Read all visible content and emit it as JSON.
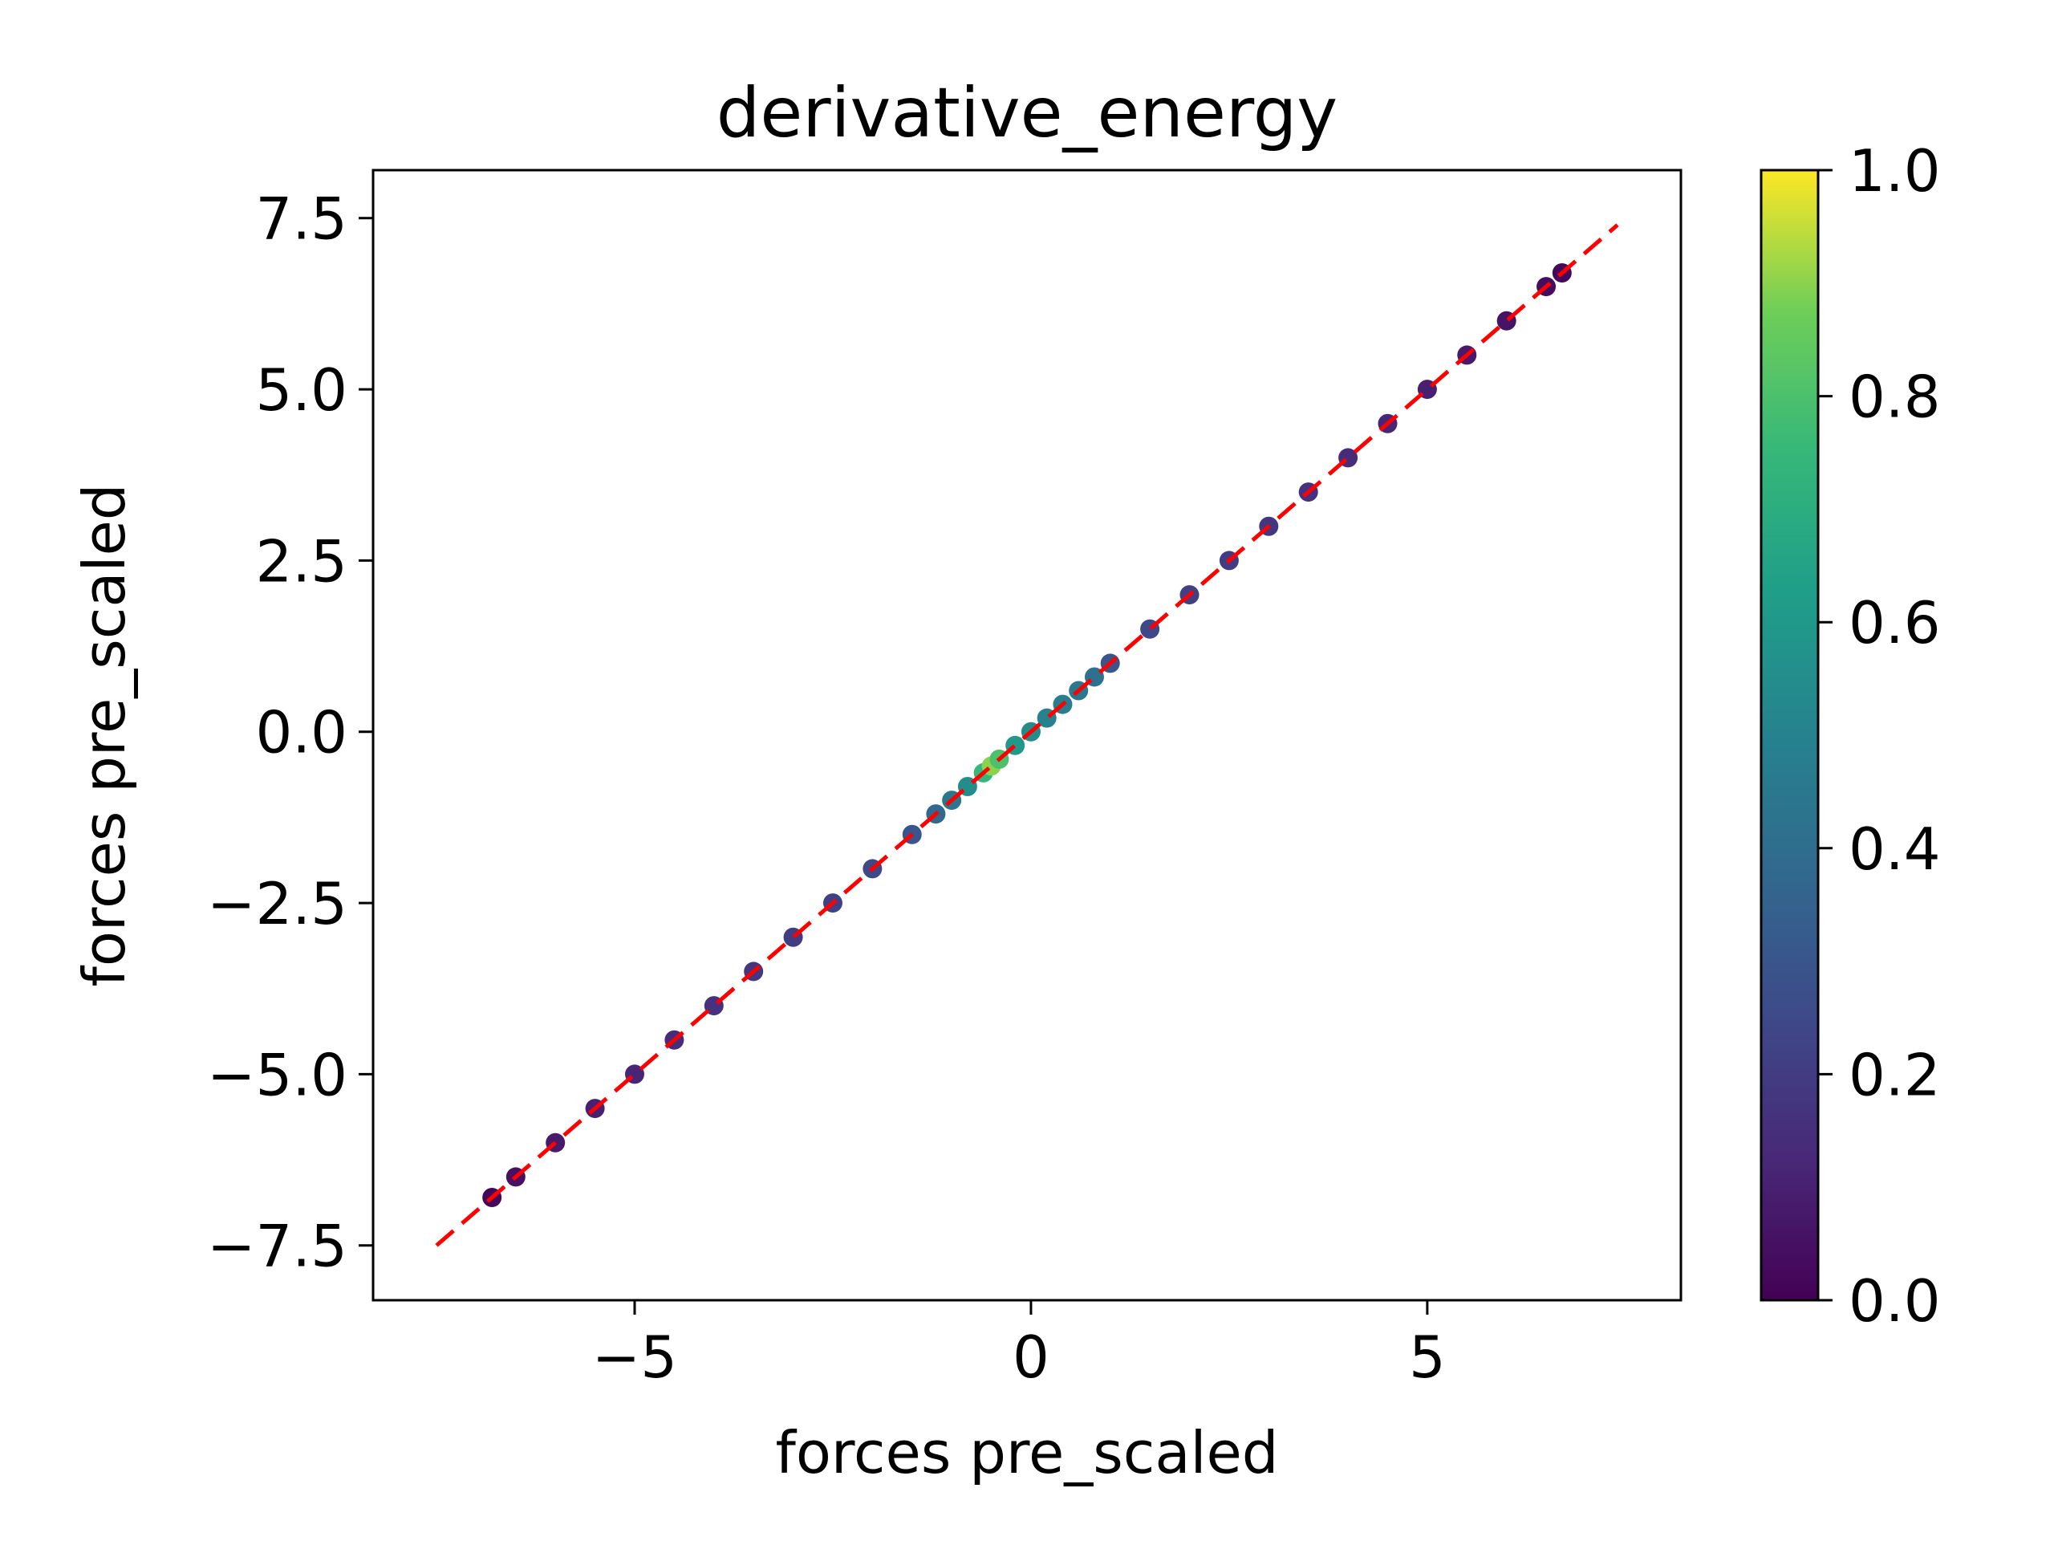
{
  "chart_data": {
    "type": "scatter",
    "title": "derivative_energy",
    "xlabel": "forces pre_scaled",
    "ylabel": "forces pre_scaled",
    "xlim": [
      -8.3,
      8.2
    ],
    "ylim": [
      -8.3,
      8.2
    ],
    "xticks": [
      {
        "value": -5,
        "label": "−5"
      },
      {
        "value": 0,
        "label": "0"
      },
      {
        "value": 5,
        "label": "5"
      }
    ],
    "yticks": [
      {
        "value": -7.5,
        "label": "−7.5"
      },
      {
        "value": -5.0,
        "label": "−5.0"
      },
      {
        "value": -2.5,
        "label": "−2.5"
      },
      {
        "value": 0.0,
        "label": "0.0"
      },
      {
        "value": 2.5,
        "label": "2.5"
      },
      {
        "value": 5.0,
        "label": "5.0"
      },
      {
        "value": 7.5,
        "label": "7.5"
      }
    ],
    "series": [
      {
        "x": [
          -6.8,
          -6.5,
          -6.0,
          -5.5,
          -5.0,
          -4.5,
          -4.0,
          -3.5,
          -3.0,
          -2.5,
          -2.0,
          -1.5,
          -1.2,
          -1.0,
          -0.8,
          -0.6,
          -0.5,
          -0.4,
          -0.2,
          0.0,
          0.2,
          0.4,
          0.6,
          0.8,
          1.0,
          1.5,
          2.0,
          2.5,
          3.0,
          3.5,
          4.0,
          4.5,
          5.0,
          5.5,
          6.0,
          6.5,
          6.7
        ],
        "y": [
          -6.8,
          -6.5,
          -6.0,
          -5.5,
          -5.0,
          -4.5,
          -4.0,
          -3.5,
          -3.0,
          -2.5,
          -2.0,
          -1.5,
          -1.2,
          -1.0,
          -0.8,
          -0.6,
          -0.5,
          -0.4,
          -0.2,
          0.0,
          0.2,
          0.4,
          0.6,
          0.8,
          1.0,
          1.5,
          2.0,
          2.5,
          3.0,
          3.5,
          4.0,
          4.5,
          5.0,
          5.5,
          6.0,
          6.5,
          6.7
        ],
        "density": [
          0.02,
          0.05,
          0.08,
          0.1,
          0.12,
          0.14,
          0.16,
          0.18,
          0.2,
          0.22,
          0.25,
          0.3,
          0.38,
          0.45,
          0.55,
          0.75,
          0.9,
          0.8,
          0.6,
          0.55,
          0.5,
          0.48,
          0.45,
          0.42,
          0.3,
          0.25,
          0.22,
          0.2,
          0.18,
          0.16,
          0.14,
          0.12,
          0.1,
          0.08,
          0.06,
          0.04,
          0.02
        ]
      }
    ],
    "reference_line": {
      "x": [
        -7.5,
        7.4
      ],
      "y": [
        -7.5,
        7.4
      ],
      "color": "#ff0000",
      "style": "dashed"
    },
    "colorbar": {
      "colormap": "viridis",
      "range": [
        0.0,
        1.0
      ],
      "ticks": [
        {
          "value": 0.0,
          "label": "0.0"
        },
        {
          "value": 0.2,
          "label": "0.2"
        },
        {
          "value": 0.4,
          "label": "0.4"
        },
        {
          "value": 0.6,
          "label": "0.6"
        },
        {
          "value": 0.8,
          "label": "0.8"
        },
        {
          "value": 1.0,
          "label": "1.0"
        }
      ]
    },
    "grid": false
  }
}
